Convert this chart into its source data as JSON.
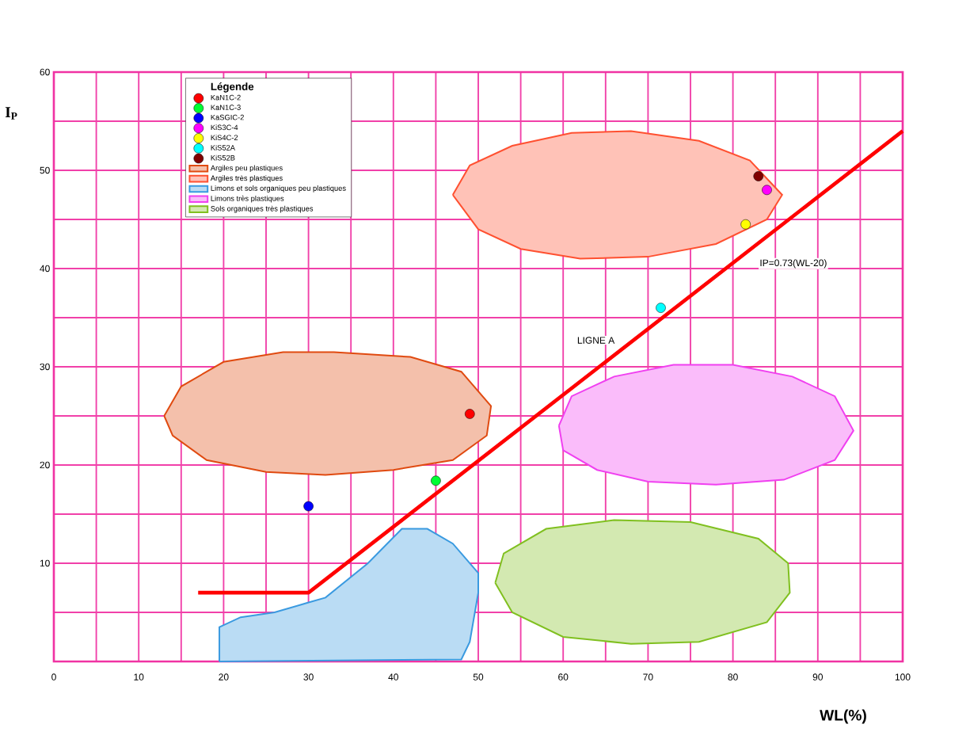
{
  "chart_data": {
    "type": "scatter",
    "xlabel": "WL(%)",
    "ylabel": "I$_{P}$",
    "legend_title": "Légende",
    "legend": "top left",
    "grid": true,
    "xlim": [
      0,
      100
    ],
    "ylim": [
      0,
      60
    ],
    "xticks": [
      0,
      {
        "value": 5,
        "label": null
      },
      10,
      {
        "value": 15,
        "label": null
      },
      20,
      {
        "value": 25,
        "label": null
      },
      30,
      {
        "value": 35,
        "label": null
      },
      40,
      {
        "value": 45,
        "label": null
      },
      50,
      {
        "value": 55,
        "label": null
      },
      60,
      {
        "value": 65,
        "label": null
      },
      70,
      {
        "value": 75,
        "label": null
      },
      80,
      {
        "value": 85,
        "label": null
      },
      90,
      {
        "value": 95,
        "label": null
      },
      100
    ],
    "yticks": [
      {
        "value": 0,
        "label": null
      },
      {
        "value": 5,
        "label": null
      },
      10,
      {
        "value": 15,
        "label": null
      },
      20,
      {
        "value": 25,
        "label": null
      },
      30,
      {
        "value": 35,
        "label": null
      },
      40,
      {
        "value": 45,
        "label": null
      },
      50,
      {
        "value": 55,
        "label": null
      },
      60
    ],
    "annotations": [
      "IP=0.73(WL-20)",
      "LIGNE A"
    ],
    "series": [
      {
        "name": "KaN1C-2",
        "color": "#ff0000",
        "x": [
          49
        ],
        "values": [
          25.2
        ]
      },
      {
        "name": "KaN1C-3",
        "color": "#00ff33",
        "x": [
          45
        ],
        "values": [
          18.4
        ]
      },
      {
        "name": "KaSGIC-2",
        "color": "#0000ff",
        "x": [
          30
        ],
        "values": [
          15.8
        ]
      },
      {
        "name": "KiS3C-4",
        "color": "#ff00ff",
        "x": [
          84
        ],
        "values": [
          48
        ]
      },
      {
        "name": "KiS4C-2",
        "color": "#ffff00",
        "x": [
          81.5
        ],
        "values": [
          44.5
        ]
      },
      {
        "name": "KiS52A",
        "color": "#00ffff",
        "x": [
          71.5
        ],
        "values": [
          36
        ]
      },
      {
        "name": "KiS52B",
        "color": "#800000",
        "x": [
          83
        ],
        "values": [
          49.4
        ]
      },
      {
        "type": "area",
        "name": "Argiles peu plastiques",
        "color": "#e04a10",
        "x": [
          13,
          15,
          20,
          27,
          33,
          42,
          48,
          51.5,
          51,
          47,
          40,
          32,
          25,
          18,
          14
        ],
        "values": [
          25,
          28,
          30.5,
          31.5,
          31.5,
          31,
          29.5,
          26,
          23,
          20.5,
          19.5,
          19,
          19.3,
          20.5,
          23
        ]
      },
      {
        "type": "area",
        "name": "Argiles très plastiques",
        "color": "#ff5030",
        "x": [
          47,
          49,
          54,
          61,
          68,
          76,
          82,
          85.8,
          84,
          78,
          70,
          62,
          55,
          50
        ],
        "values": [
          47.5,
          50.5,
          52.5,
          53.8,
          54,
          53,
          51,
          47.5,
          45,
          42.5,
          41.2,
          41,
          42,
          44
        ]
      },
      {
        "type": "area",
        "name": "Limons et sols organiques peu plastiques",
        "color": "#3a9ae0",
        "x": [
          19.5,
          19.5,
          22,
          26,
          30,
          32,
          37,
          41,
          44,
          47,
          50,
          50,
          49,
          48
        ],
        "values": [
          0,
          3.5,
          4.5,
          5,
          6,
          6.5,
          10,
          13.5,
          13.5,
          12,
          9,
          7,
          2,
          0.2
        ]
      },
      {
        "type": "area",
        "name": "Limons très plastiques",
        "color": "#f040f0",
        "x": [
          59.5,
          61,
          66,
          73,
          80,
          87,
          92,
          94.2,
          92,
          86,
          78,
          70,
          64,
          60
        ],
        "values": [
          24,
          27,
          29,
          30.2,
          30.2,
          29,
          27,
          23.5,
          20.5,
          18.5,
          18,
          18.3,
          19.5,
          21.5
        ]
      },
      {
        "type": "area",
        "name": "Sols organiques très plastiques",
        "color": "#80c020",
        "x": [
          52,
          53,
          58,
          66,
          75,
          83,
          86.5,
          86.7,
          84,
          76,
          68,
          60,
          54
        ],
        "values": [
          8,
          11,
          13.5,
          14.4,
          14.2,
          12.5,
          10,
          7,
          4,
          2,
          1.8,
          2.5,
          5
        ]
      },
      {
        "type": "line",
        "color": "#ff0000",
        "x": [
          17,
          30,
          100
        ],
        "values": [
          7,
          7,
          54
        ]
      }
    ]
  }
}
